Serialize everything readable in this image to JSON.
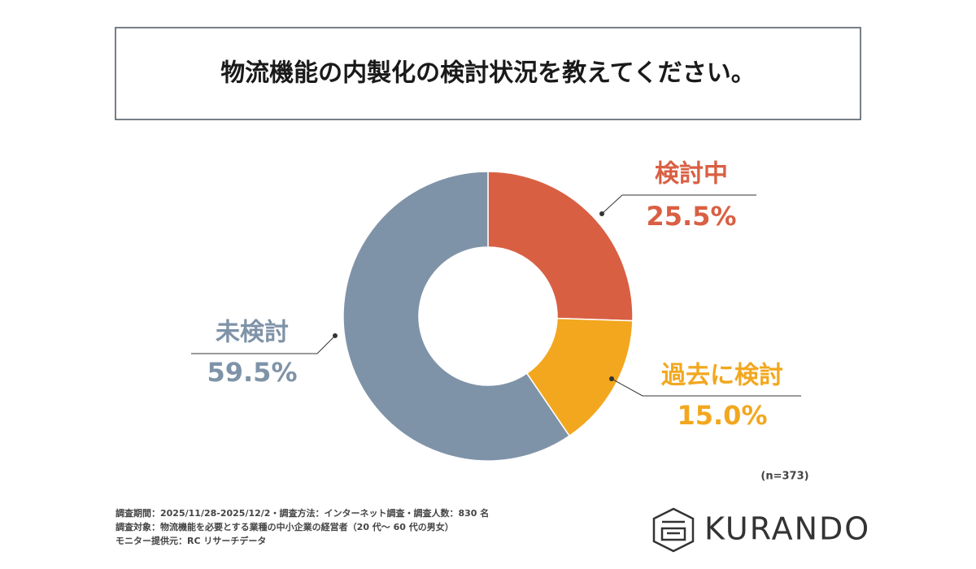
{
  "chart_data": {
    "type": "pie",
    "title": "物流機能の内製化の検討状況を教えてください。",
    "categories": [
      "検討中",
      "過去に検討",
      "未検討"
    ],
    "values": [
      25.5,
      15.0,
      59.5
    ],
    "value_labels": [
      "25.5%",
      "15.0%",
      "59.5%"
    ],
    "colors": [
      "#d95f43",
      "#f2a71e",
      "#7f93a8"
    ],
    "donut": true,
    "sample_note": "(n=373)",
    "footnotes": [
      "調査期間：2025/11/28-2025/12/2・調査方法：インターネット調査・調査人数：830 名",
      "調査対象：物流機能を必要とする業種の中小企業の経営者（20 代〜 60 代の男女）",
      "モニター提供元：RC リサーチデータ"
    ],
    "logo": "KURANDO"
  }
}
